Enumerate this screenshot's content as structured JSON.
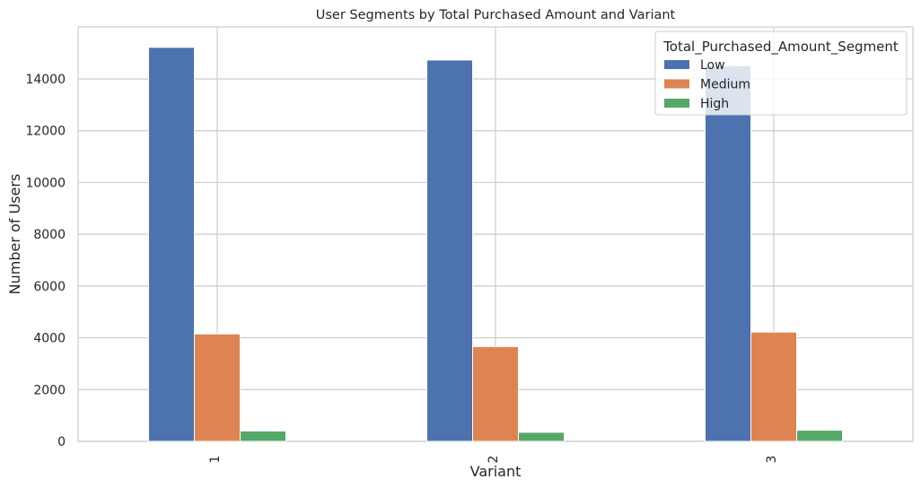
{
  "chart_data": {
    "type": "bar",
    "title": "User Segments by Total Purchased Amount and Variant",
    "xlabel": "Variant",
    "ylabel": "Number of Users",
    "categories": [
      "1",
      "2",
      "3"
    ],
    "yticks": [
      0,
      2000,
      4000,
      6000,
      8000,
      10000,
      12000,
      14000
    ],
    "ylim": [
      0,
      16000
    ],
    "grid": true,
    "legend": {
      "title": "Total_Purchased_Amount_Segment",
      "placement": "top-right"
    },
    "series": [
      {
        "name": "Low",
        "color": "#4c72b0",
        "values": [
          15220,
          14730,
          14510
        ]
      },
      {
        "name": "Medium",
        "color": "#dd8452",
        "values": [
          4150,
          3660,
          4220
        ]
      },
      {
        "name": "High",
        "color": "#55a868",
        "values": [
          400,
          350,
          430
        ]
      }
    ]
  }
}
